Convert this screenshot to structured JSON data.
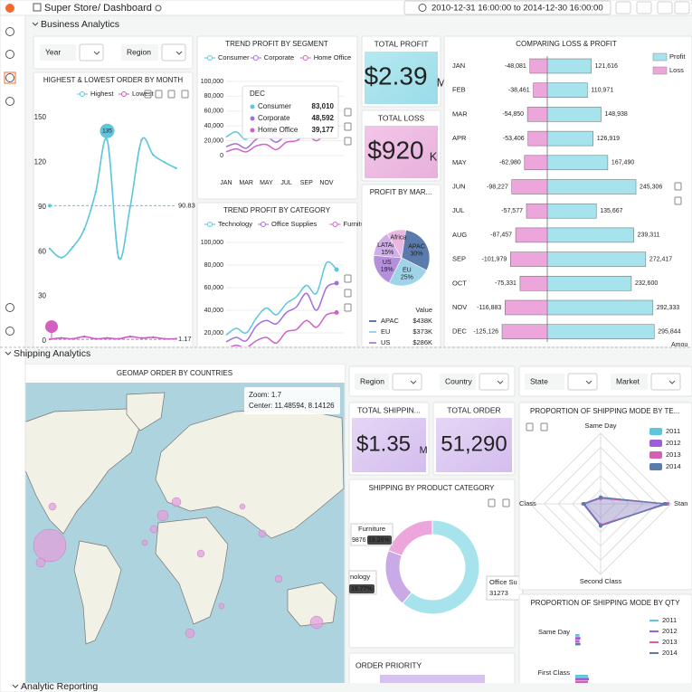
{
  "header": {
    "title": "Super Store",
    "breadcrumb": "/ Dashboard",
    "time_range": "2010-12-31 16:00:00 to 2014-12-30 16:00:00"
  },
  "rows": [
    "Business Analytics",
    "Shipping Analytics",
    "Analytic Reporting"
  ],
  "business_filters": [
    "Year",
    "Region"
  ],
  "order_by_month": {
    "title": "HIGHEST & LOWEST ORDER BY MONTH",
    "series": [
      {
        "name": "Highest",
        "color": "#5bc6dc",
        "values": [
          62,
          56,
          63,
          75,
          100,
          135,
          56,
          90,
          135,
          125,
          120,
          116
        ]
      },
      {
        "name": "Lowest",
        "color": "#c95cc4",
        "values": [
          1.17,
          2,
          1.5,
          3,
          1.5,
          2,
          1.5,
          3,
          2,
          2.5,
          1.5,
          1.5
        ]
      }
    ],
    "ylim": [
      0,
      150
    ],
    "yticks": [
      0,
      30,
      60,
      90,
      120,
      150
    ],
    "max": 135,
    "average": 90.83,
    "min": 1.17
  },
  "profit_by_segment": {
    "title": "TREND PROFIT BY SEGMENT",
    "categories": [
      "JAN",
      null,
      "MAR",
      null,
      "MAY",
      null,
      "JUL",
      null,
      "SEP",
      null,
      "NOV",
      null
    ],
    "series": [
      {
        "name": "Consumer",
        "color": "#5bc6dc",
        "values": [
          25000,
          32000,
          22000,
          42000,
          46000,
          36000,
          47000,
          55000,
          70000,
          58000,
          66000,
          83010
        ]
      },
      {
        "name": "Corporate",
        "color": "#a36ee0",
        "values": [
          12000,
          16000,
          10000,
          22000,
          26000,
          18000,
          28000,
          31000,
          42000,
          32000,
          36000,
          48592
        ]
      },
      {
        "name": "Home Office",
        "color": "#d160c8",
        "values": [
          5000,
          9000,
          5000,
          13000,
          15000,
          8000,
          18000,
          20000,
          28000,
          20000,
          31000,
          39177
        ]
      }
    ],
    "ylim": [
      0,
      100000
    ],
    "yticks": [
      0,
      {
        "value": 20000,
        "label": "20,000"
      },
      {
        "value": 40000,
        "label": "40,000"
      },
      {
        "value": 60000,
        "label": "60,000"
      },
      {
        "value": 80000,
        "label": "80,000"
      },
      {
        "value": 100000,
        "label": "100,000"
      }
    ],
    "tooltip": {
      "title": "DEC",
      "rows": [
        {
          "name": "Consumer",
          "value": "83,010"
        },
        {
          "name": "Corporate",
          "value": "48,592"
        },
        {
          "name": "Home Office",
          "value": "39,177"
        }
      ]
    }
  },
  "profit_by_category": {
    "title": "TREND PROFIT BY CATEGORY",
    "series": [
      {
        "name": "Technology",
        "color": "#5bc6dc",
        "values": [
          18000,
          24000,
          20000,
          33000,
          42000,
          36000,
          46000,
          52000,
          62000,
          55000,
          82000,
          76000
        ]
      },
      {
        "name": "Office Supplies",
        "color": "#a36ee0",
        "values": [
          12000,
          16000,
          13000,
          26000,
          31000,
          28000,
          38000,
          43000,
          55000,
          40000,
          60000,
          64000
        ]
      },
      {
        "name": "Furniture",
        "color": "#d160c8",
        "values": [
          6000,
          9000,
          7000,
          13000,
          16000,
          11000,
          21000,
          23000,
          31000,
          25000,
          36000,
          38000
        ]
      }
    ],
    "ylim": [
      0,
      100000
    ],
    "yticks": [
      {
        "value": 20000,
        "label": "20,000"
      },
      {
        "value": 40000,
        "label": "40,000"
      },
      {
        "value": 60000,
        "label": "60,000"
      },
      {
        "value": 80000,
        "label": "80,000"
      },
      {
        "value": 100000,
        "label": "100,000"
      }
    ]
  },
  "total_profit": {
    "title": "TOTAL PROFIT",
    "value": "$2.39",
    "unit": "M"
  },
  "total_loss": {
    "title": "TOTAL LOSS",
    "value": "$920",
    "unit": "K"
  },
  "profit_by_market": {
    "title": "PROFIT BY MAR...",
    "slices": [
      {
        "name": "APAC",
        "color": "#5a7bab",
        "value": 30,
        "value_label": "30%"
      },
      {
        "name": "EU",
        "color": "#9ed3e8",
        "value": 25,
        "value_label": "25%"
      },
      {
        "name": "US",
        "color": "#b48fdc",
        "value": 19,
        "value_label": "19%"
      },
      {
        "name": "LATAM",
        "color": "#cfaeea",
        "value": 15,
        "value_label": "15%"
      },
      {
        "name": "Africa",
        "color": "#ebb6e2",
        "value": 11
      }
    ],
    "table_header": "Value",
    "table": [
      {
        "name": "APAC",
        "value": "$438K"
      },
      {
        "name": "EU",
        "value": "$373K"
      },
      {
        "name": "US",
        "value": "$286K"
      }
    ]
  },
  "loss_profit": {
    "title": "COMPARING LOSS & PROFIT",
    "axis_label": "Amou",
    "categories": [
      "JAN",
      "FEB",
      "MAR",
      "APR",
      "MAY",
      "JUN",
      "JUL",
      "AUG",
      "SEP",
      "OCT",
      "NOV",
      "DEC"
    ],
    "series": [
      {
        "name": "Profit",
        "color": "#a6e3ec",
        "values": [
          121616,
          110971,
          148938,
          126919,
          167490,
          245306,
          135667,
          239311,
          272417,
          232600,
          292333,
          295844
        ],
        "value_labels": [
          "121,616",
          "110,971",
          "148,938",
          "126,919",
          "167,490",
          "245,306",
          "135,667",
          "239,311",
          "272,417",
          "232,600",
          "292,333",
          "295,844"
        ]
      },
      {
        "name": "Loss",
        "color": "#eda6dc",
        "values": [
          -48081,
          -38461,
          -54850,
          -53406,
          -62980,
          -98227,
          -57577,
          -87457,
          -101979,
          -75331,
          -116883,
          -125126
        ],
        "value_labels": [
          "-48,081",
          "-38,461",
          "-54,850",
          "-53,406",
          "-62,980",
          "-98,227",
          "-57,577",
          "-87,457",
          "-101,979",
          "-75,331",
          "-116,883",
          "-125,126"
        ]
      }
    ]
  },
  "geomap": {
    "title": "GEOMAP ORDER BY COUNTRIES",
    "zoom": "Zoom:  1.7",
    "center": "Center: 11.48594, 8.14126"
  },
  "shipping_filters": [
    "Region",
    "Country",
    "State",
    "Market"
  ],
  "total_shipping": {
    "title": "TOTAL SHIPPIN...",
    "value": "$1.35",
    "unit": "M"
  },
  "total_order": {
    "title": "TOTAL ORDER",
    "value": "51,290"
  },
  "shipping_by_category": {
    "title": "SHIPPING BY PRODUCT CATEGORY",
    "slices": [
      {
        "name": "Office Su",
        "color": "#a6e3ec",
        "value": 31273
      },
      {
        "name": "nology",
        "color": "#c9a9e6",
        "value": 10141,
        "percent_label": "19.77%"
      },
      {
        "name": "Furniture",
        "color": "#eda6dc",
        "value": 9876,
        "percent_label": "19.26%"
      }
    ]
  },
  "order_priority": {
    "title": "ORDER PRIORITY"
  },
  "shipping_mode_radar": {
    "title": "PROPORTION OF SHIPPING MODE BY TE...",
    "axes": [
      "Same Day",
      "Stan",
      "Second Class",
      "Class"
    ],
    "series": [
      {
        "name": "2011",
        "color": "#5bc6dc",
        "values": [
          0.05,
          0.6,
          0.2,
          0.15
        ]
      },
      {
        "name": "2012",
        "color": "#9c5fd8",
        "values": [
          0.06,
          0.58,
          0.2,
          0.16
        ]
      },
      {
        "name": "2013",
        "color": "#d45fb3",
        "values": [
          0.05,
          0.61,
          0.19,
          0.15
        ]
      },
      {
        "name": "2014",
        "color": "#5a7bab",
        "values": [
          0.06,
          0.59,
          0.2,
          0.15
        ]
      }
    ]
  },
  "shipping_mode_qty": {
    "title": "PROPORTION OF SHIPPING MODE BY QTY",
    "categories": [
      "Same Day",
      "First Class"
    ],
    "series": [
      {
        "name": "2011",
        "color": "#5bc6dc",
        "values": [
          0.05,
          0.15
        ]
      },
      {
        "name": "2012",
        "color": "#9c5fd8",
        "values": [
          0.06,
          0.16
        ]
      },
      {
        "name": "2013",
        "color": "#d45fb3",
        "values": [
          0.05,
          0.15
        ]
      },
      {
        "name": "2014",
        "color": "#5a7bab",
        "values": [
          0.06,
          0.15
        ]
      }
    ]
  }
}
